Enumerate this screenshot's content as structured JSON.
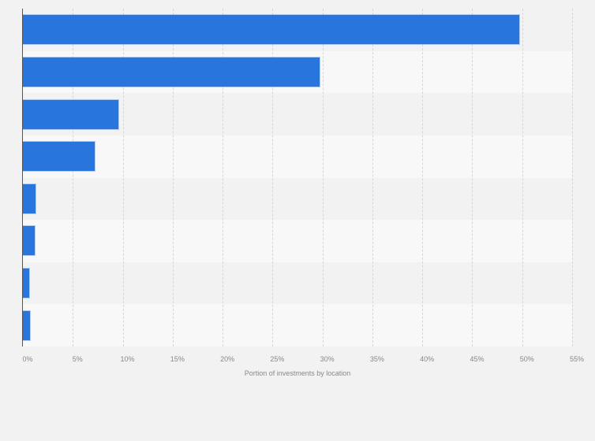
{
  "chart_data": {
    "type": "bar",
    "orientation": "horizontal",
    "title": "",
    "xlabel": "Portion of investments by location",
    "ylabel": "",
    "categories": [
      "",
      "",
      "",
      "",
      "",
      "",
      "",
      ""
    ],
    "values": [
      49.7,
      29.7,
      9.6,
      7.2,
      1.3,
      1.2,
      0.6,
      0.7
    ],
    "unit": "%",
    "xlim": [
      0,
      55
    ],
    "xticks": [
      0,
      5,
      10,
      15,
      20,
      25,
      30,
      35,
      40,
      45,
      50,
      55
    ],
    "xtick_labels": [
      "0%",
      "5%",
      "10%",
      "15%",
      "20%",
      "25%",
      "30%",
      "35%",
      "40%",
      "45%",
      "50%",
      "55%"
    ],
    "grid": true,
    "legend": null,
    "bar_color": "#2876dd"
  },
  "colors": {
    "background": "#f2f2f2",
    "band_alt": "#f8f8f8",
    "bar": "#2876dd",
    "axis": "#555555",
    "text": "#888888"
  }
}
